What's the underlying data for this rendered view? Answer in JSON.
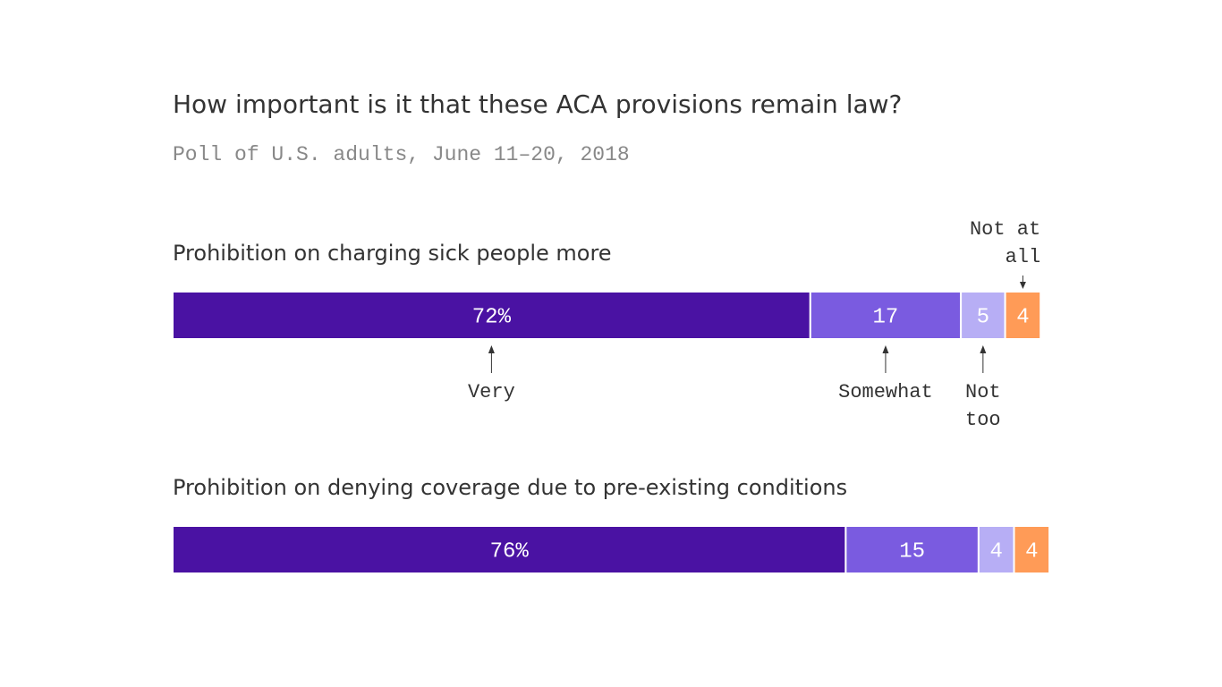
{
  "title": "How important is it that these ACA provisions remain law?",
  "subtitle": "Poll of U.S. adults, June 11–20, 2018",
  "chart_data": {
    "type": "bar",
    "orientation": "horizontal-stacked-100",
    "title": "How important is it that these ACA provisions remain law?",
    "subtitle": "Poll of U.S. adults, June 11–20, 2018",
    "categories": [
      "Prohibition on charging sick people more",
      "Prohibition on denying coverage due to pre-existing conditions"
    ],
    "series": [
      {
        "name": "Very",
        "color": "#4a12a3",
        "values": [
          72,
          76
        ],
        "labels": [
          "72%",
          "76%"
        ]
      },
      {
        "name": "Somewhat",
        "color": "#7a5be0",
        "values": [
          17,
          15
        ],
        "labels": [
          "17",
          "15"
        ]
      },
      {
        "name": "Not too",
        "color": "#b7aef5",
        "values": [
          5,
          4
        ],
        "labels": [
          "5",
          "4"
        ]
      },
      {
        "name": "Not at all",
        "color": "#ff9b57",
        "values": [
          4,
          4
        ],
        "labels": [
          "4",
          "4"
        ]
      }
    ],
    "legend_labels": [
      {
        "series": "Very",
        "lines": [
          "Very"
        ],
        "placement": "below"
      },
      {
        "series": "Somewhat",
        "lines": [
          "Somewhat"
        ],
        "placement": "below"
      },
      {
        "series": "Not too",
        "lines": [
          "Not",
          "too"
        ],
        "placement": "below"
      },
      {
        "series": "Not at all",
        "lines": [
          "Not at",
          "all"
        ],
        "placement": "above"
      }
    ],
    "xlim": [
      0,
      100
    ],
    "grid": false
  }
}
